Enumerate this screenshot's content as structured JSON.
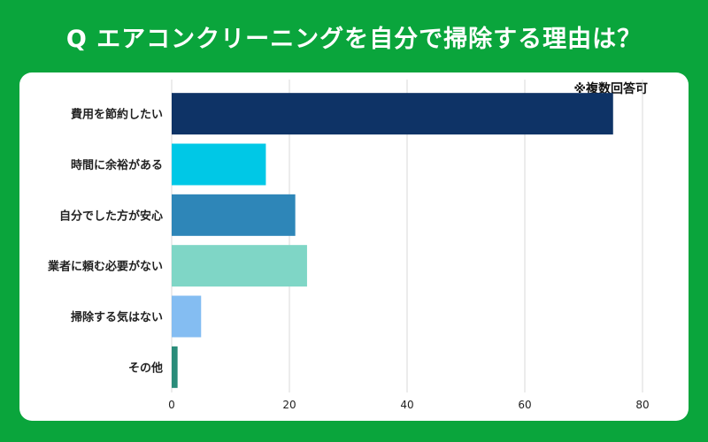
{
  "header": {
    "title": "Q エアコンクリーニングを自分で掃除する理由は？"
  },
  "note": "※複数回答可",
  "chart_data": {
    "type": "bar",
    "orientation": "horizontal",
    "categories": [
      "費用を節約したい",
      "時間に余裕がある",
      "自分でした方が安心",
      "業者に頼む必要がない",
      "掃除する気はない",
      "その他"
    ],
    "values": [
      75,
      16,
      21,
      23,
      5,
      1
    ],
    "colors": [
      "#0e3366",
      "#00c8e6",
      "#2e86b8",
      "#7fd6c6",
      "#84bdf2",
      "#2a8c7a"
    ],
    "xlim": [
      0,
      80
    ],
    "xticks": [
      0,
      20,
      40,
      60,
      80
    ],
    "grid": true
  }
}
